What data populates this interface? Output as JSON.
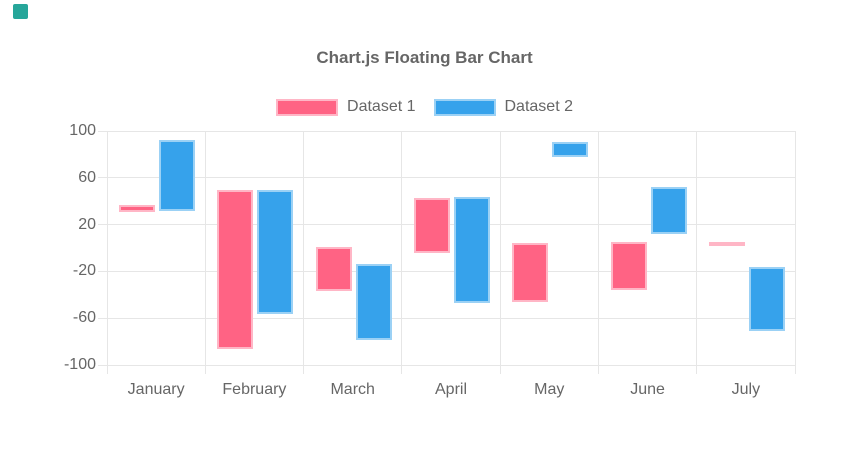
{
  "page": {
    "background_color": "#FFFFFF",
    "corner_badge_color": "#26A69A"
  },
  "chart_data": {
    "type": "bar",
    "variant": "floating-bar",
    "title": "Chart.js Floating Bar Chart",
    "categories": [
      "January",
      "February",
      "March",
      "April",
      "May",
      "June",
      "July"
    ],
    "series": [
      {
        "name": "Dataset 1",
        "color": "#FF6384",
        "border_color": "#FFB6C6",
        "ranges": [
          [
            31,
            37
          ],
          [
            -86,
            50
          ],
          [
            -37,
            1
          ],
          [
            -4,
            43
          ],
          [
            -46,
            4
          ],
          [
            -36,
            5
          ],
          [
            4,
            5
          ]
        ]
      },
      {
        "name": "Dataset 2",
        "color": "#36A2EB",
        "border_color": "#9BD1F5",
        "ranges": [
          [
            32,
            92
          ],
          [
            -56,
            50
          ],
          [
            -79,
            -14
          ],
          [
            -47,
            44
          ],
          [
            78,
            91
          ],
          [
            12,
            52
          ],
          [
            -71,
            -16
          ]
        ]
      }
    ],
    "ylim": [
      -100,
      100
    ],
    "yticks": [
      100,
      60,
      20,
      -20,
      -60,
      -100
    ],
    "grid": true,
    "legend_position": "top",
    "axis_text_color": "#666666",
    "grid_color": "#E6E6E6"
  }
}
